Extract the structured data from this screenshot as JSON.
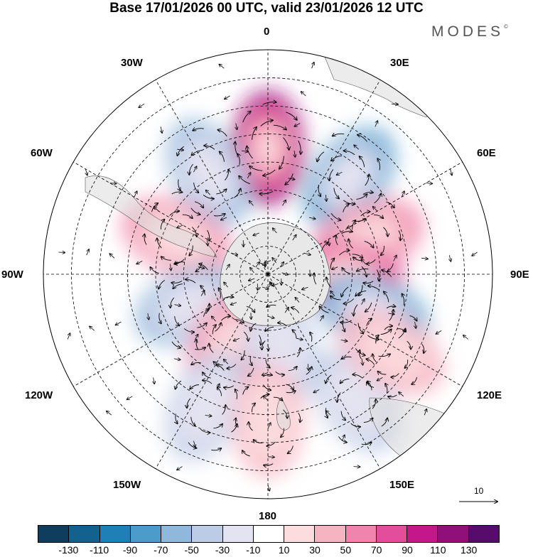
{
  "title": "Base 17/01/2026 00 UTC, valid 23/01/2026 12 UTC",
  "brand": "MODES",
  "brand_mark": "©",
  "longitude_labels": {
    "lon_0": "0",
    "lon_30e": "30E",
    "lon_60e": "60E",
    "lon_90e": "90E",
    "lon_120e": "120E",
    "lon_150e": "150E",
    "lon_180": "180",
    "lon_150w": "150W",
    "lon_120w": "120W",
    "lon_90w": "90W",
    "lon_60w": "60W",
    "lon_30w": "30W"
  },
  "vector_scale": {
    "label": "10"
  },
  "colorbar": {
    "colors": [
      "#0e3d5e",
      "#13618f",
      "#1f80b8",
      "#4b9ccb",
      "#8fb8dc",
      "#bccbe6",
      "#e4e3f1",
      "#ffffff",
      "#fcdcde",
      "#f6b4c2",
      "#ef85ad",
      "#e24e9b",
      "#c4178b",
      "#8f0f7b",
      "#570b6b"
    ],
    "ticks": [
      "-130",
      "-110",
      "-90",
      "-70",
      "-50",
      "-30",
      "-10",
      "10",
      "30",
      "50",
      "70",
      "90",
      "110",
      "130"
    ]
  },
  "anomaly_centers": [
    {
      "lon": 0,
      "lat": -45,
      "value": 110
    },
    {
      "lon": 40,
      "lat": -45,
      "value": -80
    },
    {
      "lon": -30,
      "lat": -48,
      "value": -70
    },
    {
      "lon": -68,
      "lat": -55,
      "value": 60
    },
    {
      "lon": 70,
      "lat": -52,
      "value": 50
    },
    {
      "lon": 92,
      "lat": -62,
      "value": 70
    },
    {
      "lon": 110,
      "lat": -50,
      "value": -80
    },
    {
      "lon": -112,
      "lat": -60,
      "value": -60
    },
    {
      "lon": -150,
      "lat": -62,
      "value": 50
    },
    {
      "lon": 170,
      "lat": -63,
      "value": -40
    },
    {
      "lon": -155,
      "lat": -38,
      "value": -50
    },
    {
      "lon": 145,
      "lat": -35,
      "value": -50
    },
    {
      "lon": 180,
      "lat": -38,
      "value": 40
    },
    {
      "lon": 122,
      "lat": -38,
      "value": 30
    }
  ]
}
